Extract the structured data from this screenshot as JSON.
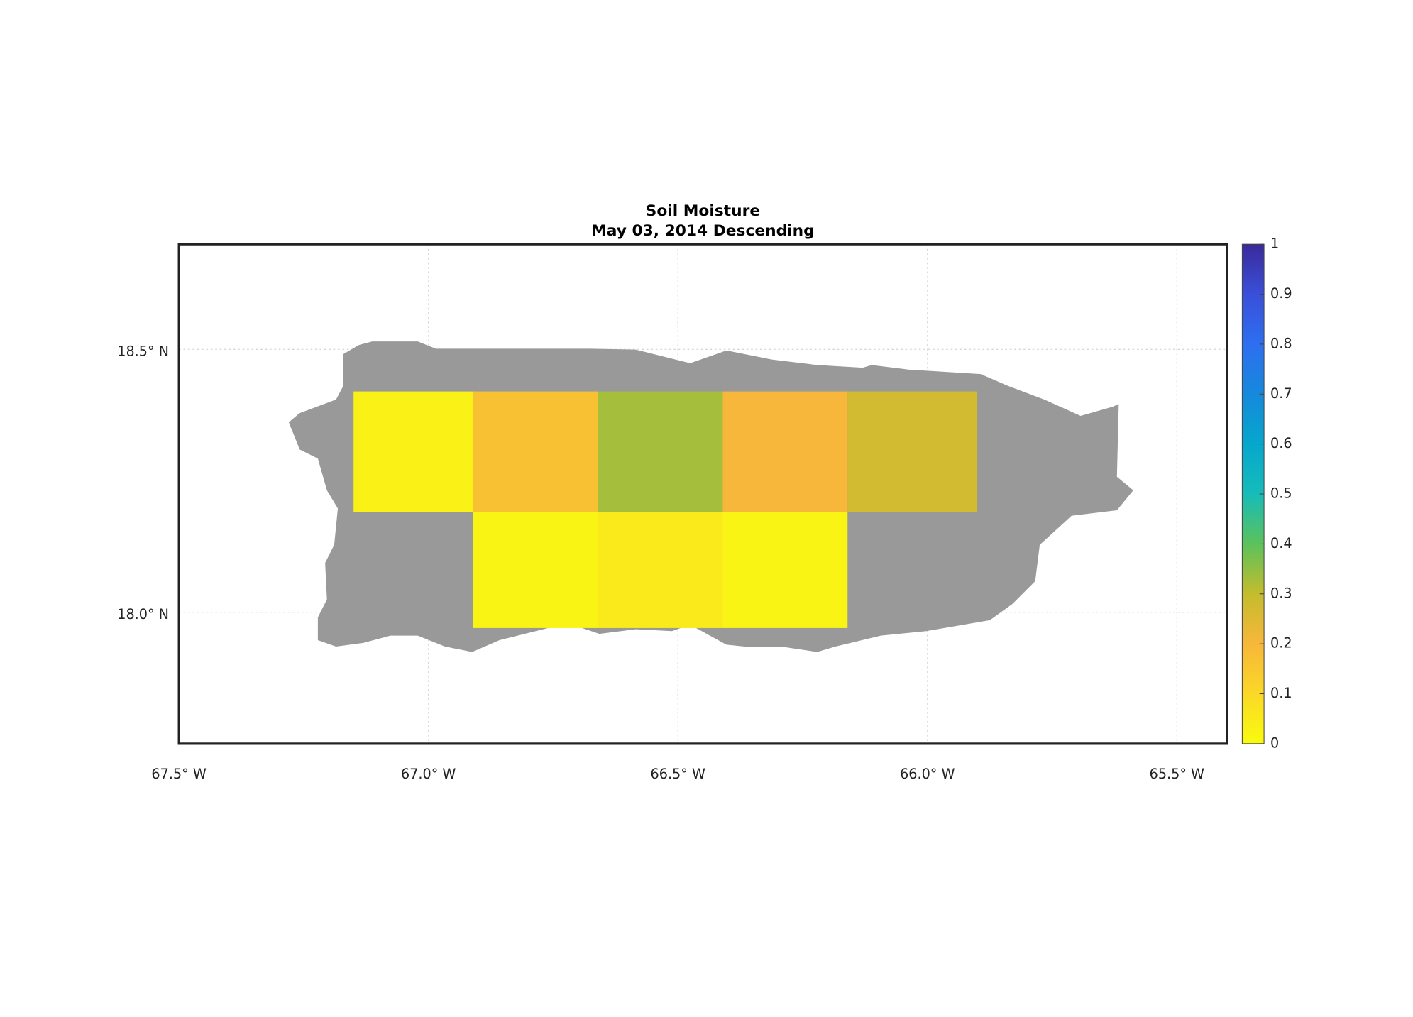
{
  "chart_data": {
    "type": "grid_map",
    "title": "Soil Moisture",
    "subtitle": "May 03, 2014 Descending",
    "xlim": [
      -67.5,
      -65.4
    ],
    "ylim": [
      17.75,
      18.7
    ],
    "xticks": [
      {
        "value": -67.5,
        "label": "67.5° W"
      },
      {
        "value": -67.0,
        "label": "67.0° W"
      },
      {
        "value": -66.5,
        "label": "66.5° W"
      },
      {
        "value": -66.0,
        "label": "66.0° W"
      },
      {
        "value": -65.5,
        "label": "65.5° W"
      }
    ],
    "yticks": [
      {
        "value": 18.5,
        "label": "18.5° N"
      },
      {
        "value": 18.0,
        "label": "18.0° N"
      }
    ],
    "grid": true,
    "x_edges": [
      -67.15,
      -66.91,
      -66.66,
      -66.41,
      -66.16,
      -65.9
    ],
    "y_edges": [
      18.42,
      18.19,
      17.97
    ],
    "values": [
      [
        0.03,
        0.17,
        0.33,
        0.2,
        0.27
      ],
      [
        null,
        0.02,
        0.05,
        0.02,
        null
      ]
    ],
    "colormap": [
      "#f9fb0e",
      "#fbd827",
      "#f7b73a",
      "#c4bc2d",
      "#5cc25b",
      "#16bcb9",
      "#06a7cd",
      "#1689dc",
      "#2d6ff0",
      "#3a4fd9",
      "#3a2a9a"
    ],
    "colorbar": {
      "lim": [
        0,
        1
      ],
      "ticks": [
        0,
        0.1,
        0.2,
        0.3,
        0.4,
        0.5,
        0.6,
        0.7,
        0.8,
        0.9,
        1
      ]
    }
  }
}
